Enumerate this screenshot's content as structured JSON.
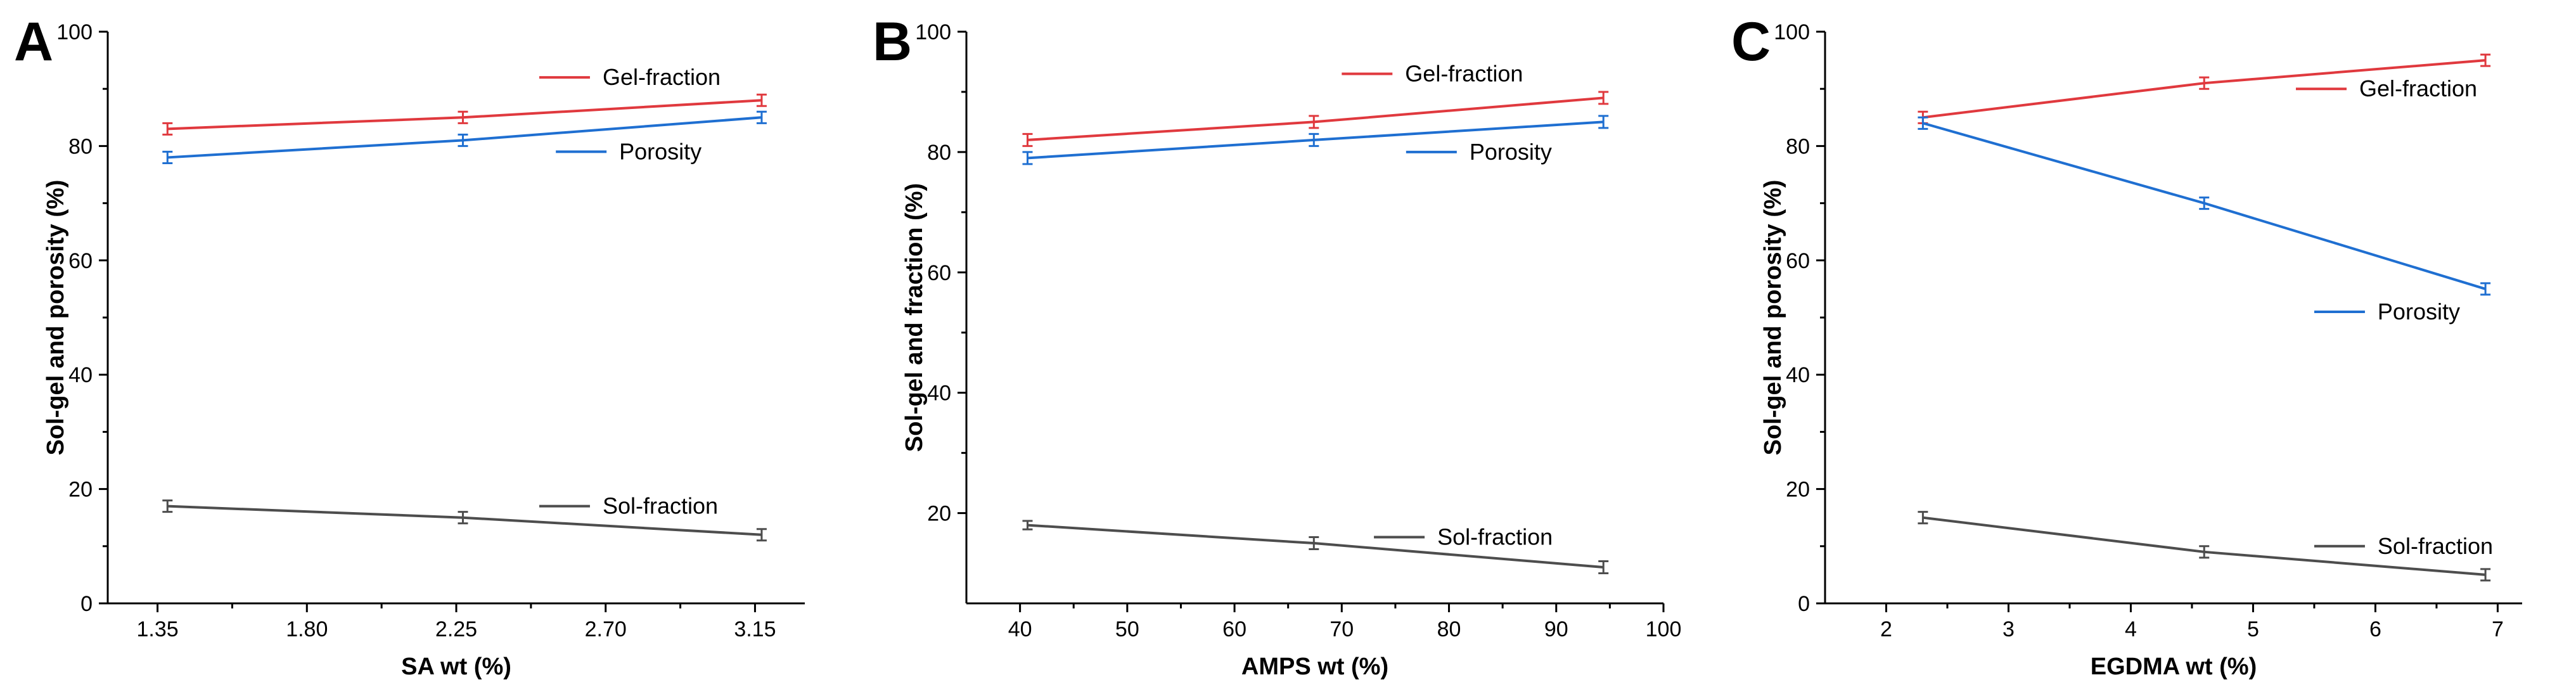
{
  "chart_data": [
    {
      "panel_label": "A",
      "type": "line",
      "xlabel": "SA wt (%)",
      "ylabel": "Sol-gel and porosity (%)",
      "xlim": [
        1.2,
        3.3
      ],
      "ylim": [
        0,
        100
      ],
      "xticks": [
        1.35,
        1.8,
        2.25,
        2.7,
        3.15
      ],
      "xtick_labels": [
        "1.35",
        "1.80",
        "2.25",
        "2.70",
        "3.15"
      ],
      "yticks": [
        0,
        20,
        40,
        60,
        80,
        100
      ],
      "x": [
        1.38,
        2.27,
        3.17
      ],
      "series": [
        {
          "name": "Gel-fraction",
          "color": "#e0393e",
          "values": [
            83,
            85,
            88
          ],
          "errors": [
            1,
            1,
            1
          ]
        },
        {
          "name": "Porosity",
          "color": "#1f6fd1",
          "values": [
            78,
            81,
            85
          ],
          "errors": [
            1,
            1,
            1
          ]
        },
        {
          "name": "Sol-fraction",
          "color": "#4d4d4d",
          "values": [
            17,
            15,
            12
          ],
          "errors": [
            1,
            1,
            1
          ]
        }
      ],
      "legend": [
        {
          "name": "Gel-fraction",
          "anchor": [
            2.5,
            92
          ]
        },
        {
          "name": "Porosity",
          "anchor": [
            2.55,
            79
          ]
        },
        {
          "name": "Sol-fraction",
          "anchor": [
            2.5,
            17
          ]
        }
      ]
    },
    {
      "panel_label": "B",
      "type": "line",
      "xlabel": "AMPS wt (%)",
      "ylabel": "Sol-gel and fraction (%)",
      "xlim": [
        35,
        100
      ],
      "ylim": [
        5,
        100
      ],
      "xticks": [
        40,
        50,
        60,
        70,
        80,
        90,
        100
      ],
      "xtick_labels": [
        "40",
        "50",
        "60",
        "70",
        "80",
        "90",
        "100"
      ],
      "yticks": [
        20,
        40,
        60,
        80,
        100
      ],
      "x": [
        40.7,
        67.4,
        94.4
      ],
      "series": [
        {
          "name": "Gel-fraction",
          "color": "#e0393e",
          "values": [
            82,
            85,
            89
          ],
          "errors": [
            1,
            1,
            1
          ]
        },
        {
          "name": "Porosity",
          "color": "#1f6fd1",
          "values": [
            79,
            82,
            85
          ],
          "errors": [
            1,
            1,
            1
          ]
        },
        {
          "name": "Sol-fraction",
          "color": "#4d4d4d",
          "values": [
            18,
            15,
            11
          ],
          "errors": [
            0.7,
            1,
            1
          ]
        }
      ],
      "legend": [
        {
          "name": "Gel-fraction",
          "anchor": [
            70,
            93
          ]
        },
        {
          "name": "Porosity",
          "anchor": [
            76,
            80
          ]
        },
        {
          "name": "Sol-fraction",
          "anchor": [
            73,
            16
          ]
        }
      ]
    },
    {
      "panel_label": "C",
      "type": "line",
      "xlabel": "EGDMA wt (%)",
      "ylabel": "Sol-gel and porosity (%)",
      "xlim": [
        1.5,
        7.2
      ],
      "ylim": [
        0,
        100
      ],
      "xticks": [
        2,
        3,
        4,
        5,
        6,
        7
      ],
      "xtick_labels": [
        "2",
        "3",
        "4",
        "5",
        "6",
        "7"
      ],
      "yticks": [
        0,
        20,
        40,
        60,
        80,
        100
      ],
      "x": [
        2.3,
        4.6,
        6.9
      ],
      "series": [
        {
          "name": "Gel-fraction",
          "color": "#e0393e",
          "values": [
            85,
            91,
            95
          ],
          "errors": [
            1,
            1,
            1
          ]
        },
        {
          "name": "Porosity",
          "color": "#1f6fd1",
          "values": [
            84,
            70,
            55
          ],
          "errors": [
            1,
            1,
            1
          ]
        },
        {
          "name": "Sol-fraction",
          "color": "#4d4d4d",
          "values": [
            15,
            9,
            5
          ],
          "errors": [
            1,
            1,
            1
          ]
        }
      ],
      "legend": [
        {
          "name": "Gel-fraction",
          "anchor": [
            5.35,
            90
          ]
        },
        {
          "name": "Porosity",
          "anchor": [
            5.5,
            51
          ]
        },
        {
          "name": "Sol-fraction",
          "anchor": [
            5.5,
            10
          ]
        }
      ]
    }
  ]
}
